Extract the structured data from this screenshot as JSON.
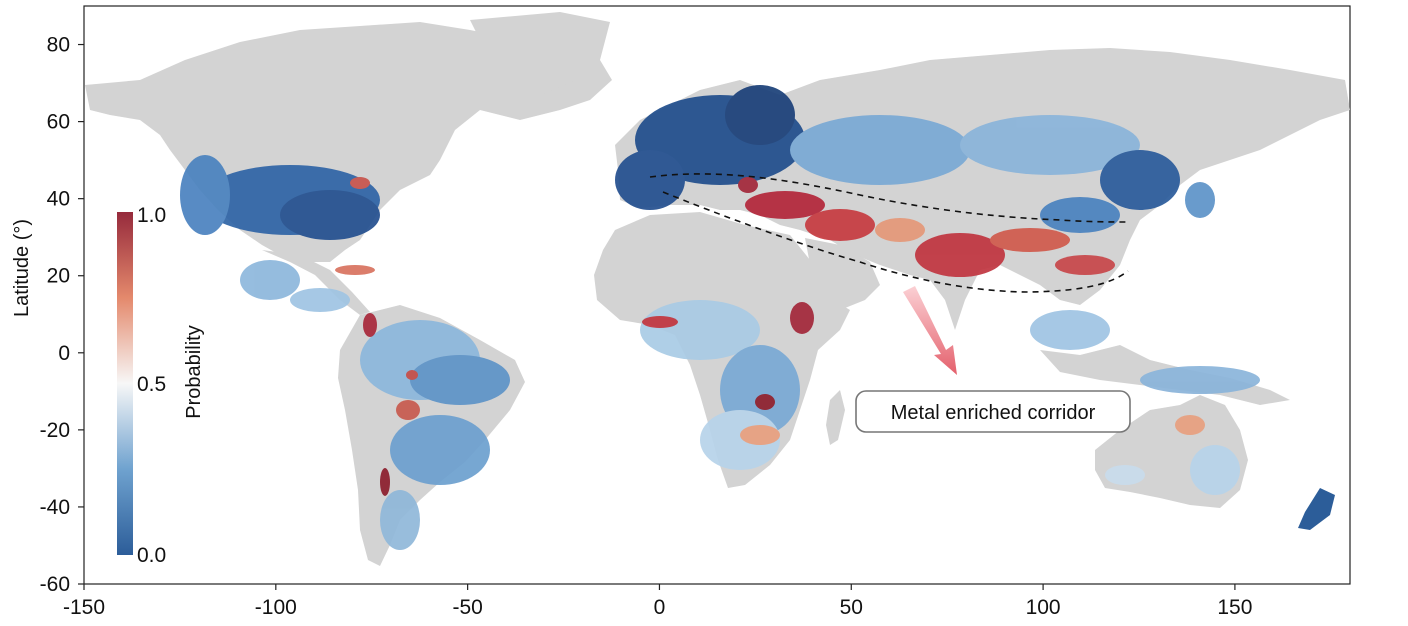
{
  "map": {
    "y_axis_title": "Latitude (°)",
    "x_ticks": [
      "-150",
      "-100",
      "-50",
      "0",
      "50",
      "100",
      "150"
    ],
    "y_ticks": [
      "80",
      "60",
      "40",
      "20",
      "0",
      "-20",
      "-40",
      "-60"
    ],
    "extent": {
      "lon_min": -150,
      "lon_max": 180,
      "lat_min": -60,
      "lat_max": 90
    },
    "land_color": "#d3d3d3"
  },
  "colorbar": {
    "title": "Probability",
    "max_label": "1.0",
    "mid_label": "0.5",
    "min_label": "0.0",
    "colors": {
      "high": "#b2182b",
      "mid": "#f7f7f7",
      "low": "#2166ac"
    }
  },
  "annotation": {
    "text": "Metal enriched corridor",
    "arrow_color": "#e8707a"
  }
}
